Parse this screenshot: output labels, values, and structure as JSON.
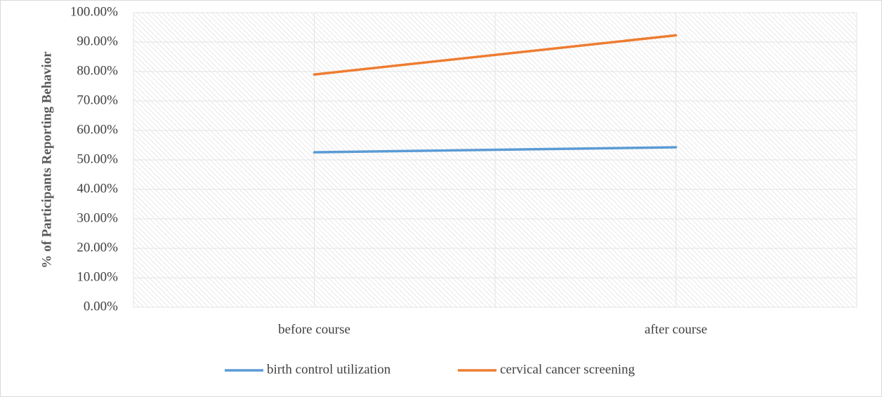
{
  "chart_data": {
    "type": "line",
    "y_axis_label": "% of Participants Reporting Behavior",
    "categories": [
      "before course",
      "after course"
    ],
    "series": [
      {
        "name": "birth control utilization",
        "color": "#5b9bd5",
        "values": [
          52.6,
          54.3
        ]
      },
      {
        "name": "cervical cancer screening",
        "color": "#ed7d31",
        "values": [
          79.0,
          92.3
        ]
      }
    ],
    "ylim": [
      0,
      100
    ],
    "yticks": [
      {
        "value": 0,
        "label": "0.00%"
      },
      {
        "value": 10,
        "label": "10.00%"
      },
      {
        "value": 20,
        "label": "20.00%"
      },
      {
        "value": 30,
        "label": "30.00%"
      },
      {
        "value": 40,
        "label": "40.00%"
      },
      {
        "value": 50,
        "label": "50.00%"
      },
      {
        "value": 60,
        "label": "60.00%"
      },
      {
        "value": 70,
        "label": "70.00%"
      },
      {
        "value": 80,
        "label": "80.00%"
      },
      {
        "value": 90,
        "label": "90.00%"
      },
      {
        "value": 100,
        "label": "100.00%"
      }
    ],
    "grid": true,
    "legend": "bottom"
  }
}
